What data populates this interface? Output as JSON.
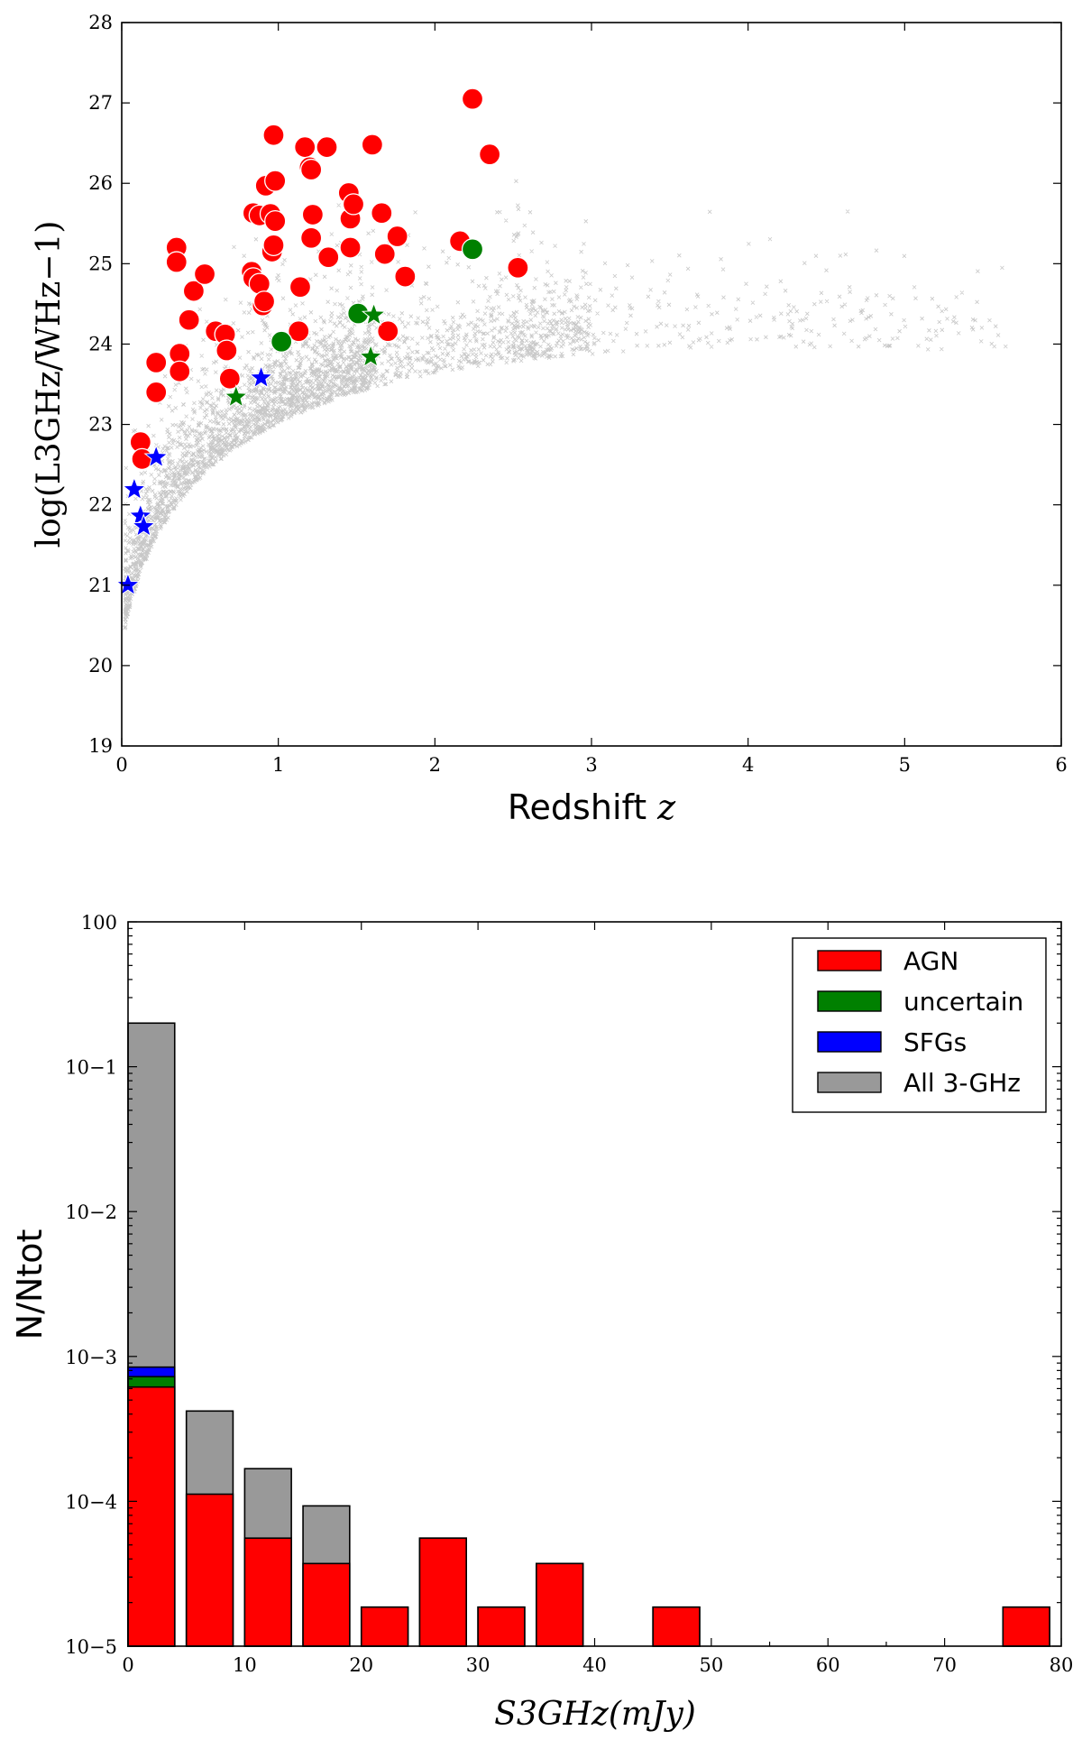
{
  "colors": {
    "agn": "#ff0000",
    "uncertain": "#008000",
    "sfg": "#0000ff",
    "all": "#999999",
    "background_points": "#000000"
  },
  "chart_data": [
    {
      "type": "scatter",
      "title": "",
      "xlabel": "Redshift",
      "xlabel_var": "z",
      "ylabel": "log(L3GHz/WHz−1)",
      "xlim": [
        0,
        6
      ],
      "ylim": [
        19,
        28
      ],
      "xticks": [
        "0",
        "1",
        "2",
        "3",
        "4",
        "5",
        "6"
      ],
      "yticks": [
        "19",
        "20",
        "21",
        "22",
        "23",
        "24",
        "25",
        "26",
        "27",
        "28"
      ],
      "grid": false,
      "series": [
        {
          "marker": "circle",
          "color_key": "agn",
          "points": [
            [
              0.12,
              22.78
            ],
            [
              0.13,
              22.57
            ],
            [
              0.22,
              23.77
            ],
            [
              0.22,
              23.4
            ],
            [
              0.35,
              25.2
            ],
            [
              0.35,
              25.02
            ],
            [
              0.37,
              23.88
            ],
            [
              0.37,
              23.66
            ],
            [
              0.43,
              24.3
            ],
            [
              0.46,
              24.66
            ],
            [
              0.53,
              24.87
            ],
            [
              0.6,
              24.16
            ],
            [
              0.66,
              24.12
            ],
            [
              0.67,
              23.92
            ],
            [
              0.69,
              23.57
            ],
            [
              0.83,
              24.9
            ],
            [
              0.84,
              24.82
            ],
            [
              0.84,
              25.63
            ],
            [
              0.88,
              25.6
            ],
            [
              0.88,
              24.75
            ],
            [
              0.9,
              24.48
            ],
            [
              0.91,
              24.53
            ],
            [
              0.92,
              25.97
            ],
            [
              0.95,
              25.62
            ],
            [
              0.96,
              25.15
            ],
            [
              0.97,
              25.23
            ],
            [
              0.97,
              26.6
            ],
            [
              0.98,
              26.03
            ],
            [
              0.98,
              25.53
            ],
            [
              1.13,
              24.16
            ],
            [
              1.14,
              24.71
            ],
            [
              1.17,
              26.45
            ],
            [
              1.2,
              26.2
            ],
            [
              1.21,
              25.32
            ],
            [
              1.21,
              26.17
            ],
            [
              1.22,
              25.61
            ],
            [
              1.31,
              26.45
            ],
            [
              1.32,
              25.08
            ],
            [
              1.45,
              25.88
            ],
            [
              1.46,
              25.2
            ],
            [
              1.46,
              25.56
            ],
            [
              1.48,
              25.74
            ],
            [
              1.6,
              26.48
            ],
            [
              1.66,
              25.63
            ],
            [
              1.68,
              25.12
            ],
            [
              1.7,
              24.16
            ],
            [
              1.76,
              25.34
            ],
            [
              1.81,
              24.84
            ],
            [
              2.16,
              25.28
            ],
            [
              2.24,
              27.05
            ],
            [
              2.35,
              26.36
            ],
            [
              2.53,
              24.95
            ]
          ]
        },
        {
          "marker": "circle",
          "color_key": "uncertain",
          "points": [
            [
              1.02,
              24.03
            ],
            [
              1.51,
              24.38
            ],
            [
              2.24,
              25.18
            ]
          ]
        },
        {
          "marker": "star",
          "color_key": "uncertain",
          "points": [
            [
              0.73,
              23.34
            ],
            [
              1.59,
              23.84
            ],
            [
              1.61,
              24.36
            ]
          ]
        },
        {
          "marker": "star",
          "color_key": "sfg",
          "points": [
            [
              0.04,
              21.0
            ],
            [
              0.08,
              22.19
            ],
            [
              0.12,
              21.86
            ],
            [
              0.14,
              21.73
            ],
            [
              0.22,
              22.59
            ],
            [
              0.89,
              23.58
            ]
          ]
        },
        {
          "marker": "x",
          "color_key": "background_points",
          "description_range": [
            0.0,
            5.65
          ]
        }
      ]
    },
    {
      "type": "bar",
      "title": "",
      "xlabel": "S3GHz(mJy)",
      "ylabel": "N/Ntot",
      "xlim": [
        0,
        80
      ],
      "ylim": [
        1e-05,
        1
      ],
      "yscale": "log",
      "xticks": [
        "0",
        "10",
        "20",
        "30",
        "40",
        "50",
        "60",
        "70",
        "80"
      ],
      "yticks": [
        "10−5",
        "10−4",
        "10−3",
        "10−2",
        "10−1",
        "100"
      ],
      "bin_width": 4,
      "stacking": "overlaid; uncertain and SFGs stacked above AGN in first bin",
      "legend": {
        "placement": "top-right",
        "entries": [
          {
            "label": "AGN",
            "color_key": "agn"
          },
          {
            "label": "uncertain",
            "color_key": "uncertain"
          },
          {
            "label": "SFGs",
            "color_key": "sfg"
          },
          {
            "label": "All 3-GHz",
            "color_key": "all"
          }
        ]
      },
      "series": [
        {
          "name": "All 3-GHz",
          "color_key": "all",
          "bins": [
            [
              0,
              0.2
            ],
            [
              5,
              0.00042
            ],
            [
              10,
              0.000168
            ],
            [
              15,
              9.3e-05
            ],
            [
              20,
              1.86e-05
            ],
            [
              25,
              5.57e-05
            ],
            [
              30,
              1.86e-05
            ],
            [
              35,
              3.72e-05
            ],
            [
              45,
              1.86e-05
            ],
            [
              75,
              1.86e-05
            ]
          ]
        },
        {
          "name": "SFGs",
          "color_key": "sfg",
          "bins": [
            [
              0,
              0.000844
            ]
          ]
        },
        {
          "name": "uncertain",
          "color_key": "uncertain",
          "bins": [
            [
              0,
              0.000725
            ]
          ]
        },
        {
          "name": "AGN",
          "color_key": "agn",
          "bins": [
            [
              0,
              0.000615
            ],
            [
              5,
              0.000112
            ],
            [
              10,
              5.57e-05
            ],
            [
              15,
              3.72e-05
            ],
            [
              20,
              1.86e-05
            ],
            [
              25,
              5.57e-05
            ],
            [
              30,
              1.86e-05
            ],
            [
              35,
              3.72e-05
            ],
            [
              45,
              1.86e-05
            ],
            [
              75,
              1.86e-05
            ]
          ]
        }
      ]
    }
  ]
}
